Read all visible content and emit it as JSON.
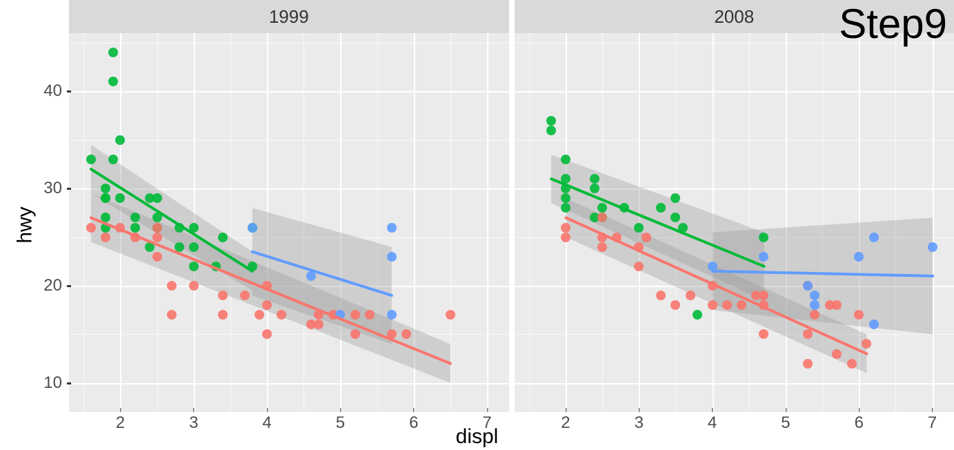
{
  "type": "scatter",
  "step_label": "Step9",
  "x_label": "displ",
  "y_label": "hwy",
  "facet_labels": [
    "1999",
    "2008"
  ],
  "x_ticks": [
    2,
    3,
    4,
    5,
    6,
    7
  ],
  "y_ticks": [
    10,
    20,
    30,
    40
  ],
  "xlim": [
    1.3,
    7.3
  ],
  "ylim": [
    7,
    46
  ],
  "background_color": "#ffffff",
  "panel_color": "#ebebeb",
  "strip_color": "#d9d9d9",
  "grid_color": "#ffffff",
  "tick_color": "#4d4d4d",
  "ribbon_color": "#999999",
  "ribbon_opacity": 0.35,
  "label_fontsize": 30,
  "tick_fontsize": 24,
  "strip_fontsize": 26,
  "step_fontsize": 60,
  "point_size": 14,
  "line_width": 4,
  "series_colors": {
    "4": "#f8766d",
    "f": "#00ba38",
    "r": "#619cff"
  },
  "panels": [
    {
      "label": "1999",
      "points": [
        {
          "x": 1.6,
          "y": 33,
          "drv": "f"
        },
        {
          "x": 1.8,
          "y": 29,
          "drv": "f"
        },
        {
          "x": 1.8,
          "y": 29,
          "drv": "f"
        },
        {
          "x": 1.8,
          "y": 26,
          "drv": "f"
        },
        {
          "x": 1.8,
          "y": 27,
          "drv": "f"
        },
        {
          "x": 1.8,
          "y": 30,
          "drv": "f"
        },
        {
          "x": 1.9,
          "y": 44,
          "drv": "f"
        },
        {
          "x": 1.9,
          "y": 41,
          "drv": "f"
        },
        {
          "x": 1.9,
          "y": 33,
          "drv": "f"
        },
        {
          "x": 2.0,
          "y": 29,
          "drv": "f"
        },
        {
          "x": 2.0,
          "y": 35,
          "drv": "f"
        },
        {
          "x": 2.2,
          "y": 27,
          "drv": "f"
        },
        {
          "x": 2.2,
          "y": 26,
          "drv": "f"
        },
        {
          "x": 2.4,
          "y": 29,
          "drv": "f"
        },
        {
          "x": 2.4,
          "y": 24,
          "drv": "f"
        },
        {
          "x": 2.5,
          "y": 26,
          "drv": "f"
        },
        {
          "x": 2.5,
          "y": 27,
          "drv": "f"
        },
        {
          "x": 2.5,
          "y": 29,
          "drv": "f"
        },
        {
          "x": 2.8,
          "y": 24,
          "drv": "f"
        },
        {
          "x": 2.8,
          "y": 26,
          "drv": "f"
        },
        {
          "x": 3.0,
          "y": 26,
          "drv": "f"
        },
        {
          "x": 3.0,
          "y": 24,
          "drv": "f"
        },
        {
          "x": 3.0,
          "y": 22,
          "drv": "f"
        },
        {
          "x": 3.3,
          "y": 22,
          "drv": "f"
        },
        {
          "x": 3.4,
          "y": 25,
          "drv": "f"
        },
        {
          "x": 3.8,
          "y": 26,
          "drv": "f"
        },
        {
          "x": 3.8,
          "y": 22,
          "drv": "f"
        },
        {
          "x": 1.6,
          "y": 26,
          "drv": "4"
        },
        {
          "x": 1.8,
          "y": 25,
          "drv": "4"
        },
        {
          "x": 2.0,
          "y": 26,
          "drv": "4"
        },
        {
          "x": 2.2,
          "y": 25,
          "drv": "4"
        },
        {
          "x": 2.5,
          "y": 25,
          "drv": "4"
        },
        {
          "x": 2.5,
          "y": 26,
          "drv": "4"
        },
        {
          "x": 2.5,
          "y": 23,
          "drv": "4"
        },
        {
          "x": 2.7,
          "y": 20,
          "drv": "4"
        },
        {
          "x": 2.7,
          "y": 17,
          "drv": "4"
        },
        {
          "x": 3.0,
          "y": 20,
          "drv": "4"
        },
        {
          "x": 3.4,
          "y": 19,
          "drv": "4"
        },
        {
          "x": 3.4,
          "y": 17,
          "drv": "4"
        },
        {
          "x": 3.7,
          "y": 19,
          "drv": "4"
        },
        {
          "x": 3.9,
          "y": 17,
          "drv": "4"
        },
        {
          "x": 4.0,
          "y": 18,
          "drv": "4"
        },
        {
          "x": 4.0,
          "y": 15,
          "drv": "4"
        },
        {
          "x": 4.0,
          "y": 20,
          "drv": "4"
        },
        {
          "x": 4.2,
          "y": 17,
          "drv": "4"
        },
        {
          "x": 4.6,
          "y": 16,
          "drv": "4"
        },
        {
          "x": 4.7,
          "y": 17,
          "drv": "4"
        },
        {
          "x": 4.7,
          "y": 16,
          "drv": "4"
        },
        {
          "x": 4.9,
          "y": 17,
          "drv": "4"
        },
        {
          "x": 5.2,
          "y": 15,
          "drv": "4"
        },
        {
          "x": 5.2,
          "y": 17,
          "drv": "4"
        },
        {
          "x": 5.4,
          "y": 17,
          "drv": "4"
        },
        {
          "x": 5.7,
          "y": 15,
          "drv": "4"
        },
        {
          "x": 5.9,
          "y": 15,
          "drv": "4"
        },
        {
          "x": 6.5,
          "y": 17,
          "drv": "4"
        },
        {
          "x": 3.8,
          "y": 26,
          "drv": "r"
        },
        {
          "x": 4.6,
          "y": 21,
          "drv": "r"
        },
        {
          "x": 5.0,
          "y": 17,
          "drv": "r"
        },
        {
          "x": 5.7,
          "y": 26,
          "drv": "r"
        },
        {
          "x": 5.7,
          "y": 23,
          "drv": "r"
        },
        {
          "x": 5.7,
          "y": 17,
          "drv": "r"
        }
      ],
      "lines": [
        {
          "drv": "f",
          "x1": 1.6,
          "y1": 32,
          "x2": 3.8,
          "y2": 21.5
        },
        {
          "drv": "4",
          "x1": 1.6,
          "y1": 27,
          "x2": 6.5,
          "y2": 12
        },
        {
          "drv": "r",
          "x1": 3.8,
          "y1": 23.5,
          "x2": 5.7,
          "y2": 19
        }
      ],
      "ribbons": [
        {
          "drv": "f",
          "points": [
            [
              1.6,
              29.5
            ],
            [
              3.8,
              19.5
            ],
            [
              3.8,
              23.5
            ],
            [
              1.6,
              34.5
            ]
          ]
        },
        {
          "drv": "4",
          "points": [
            [
              1.6,
              24.5
            ],
            [
              6.5,
              10
            ],
            [
              6.5,
              14
            ],
            [
              1.6,
              29.5
            ]
          ]
        },
        {
          "drv": "r",
          "points": [
            [
              3.8,
              19
            ],
            [
              5.7,
              14
            ],
            [
              5.7,
              24
            ],
            [
              3.8,
              28
            ]
          ]
        }
      ]
    },
    {
      "label": "2008",
      "points": [
        {
          "x": 1.8,
          "y": 36,
          "drv": "f"
        },
        {
          "x": 1.8,
          "y": 37,
          "drv": "f"
        },
        {
          "x": 2.0,
          "y": 31,
          "drv": "f"
        },
        {
          "x": 2.0,
          "y": 30,
          "drv": "f"
        },
        {
          "x": 2.0,
          "y": 29,
          "drv": "f"
        },
        {
          "x": 2.0,
          "y": 33,
          "drv": "f"
        },
        {
          "x": 2.0,
          "y": 28,
          "drv": "f"
        },
        {
          "x": 2.4,
          "y": 30,
          "drv": "f"
        },
        {
          "x": 2.4,
          "y": 31,
          "drv": "f"
        },
        {
          "x": 2.4,
          "y": 27,
          "drv": "f"
        },
        {
          "x": 2.5,
          "y": 28,
          "drv": "f"
        },
        {
          "x": 2.5,
          "y": 27,
          "drv": "f"
        },
        {
          "x": 2.8,
          "y": 28,
          "drv": "f"
        },
        {
          "x": 3.0,
          "y": 26,
          "drv": "f"
        },
        {
          "x": 3.3,
          "y": 28,
          "drv": "f"
        },
        {
          "x": 3.5,
          "y": 29,
          "drv": "f"
        },
        {
          "x": 3.5,
          "y": 27,
          "drv": "f"
        },
        {
          "x": 3.6,
          "y": 26,
          "drv": "f"
        },
        {
          "x": 3.8,
          "y": 17,
          "drv": "f"
        },
        {
          "x": 4.7,
          "y": 25,
          "drv": "f"
        },
        {
          "x": 2.0,
          "y": 26,
          "drv": "4"
        },
        {
          "x": 2.0,
          "y": 25,
          "drv": "4"
        },
        {
          "x": 2.5,
          "y": 27,
          "drv": "4"
        },
        {
          "x": 2.5,
          "y": 25,
          "drv": "4"
        },
        {
          "x": 2.5,
          "y": 24,
          "drv": "4"
        },
        {
          "x": 2.7,
          "y": 25,
          "drv": "4"
        },
        {
          "x": 3.0,
          "y": 24,
          "drv": "4"
        },
        {
          "x": 3.0,
          "y": 22,
          "drv": "4"
        },
        {
          "x": 3.1,
          "y": 25,
          "drv": "4"
        },
        {
          "x": 3.3,
          "y": 19,
          "drv": "4"
        },
        {
          "x": 3.5,
          "y": 18,
          "drv": "4"
        },
        {
          "x": 3.7,
          "y": 19,
          "drv": "4"
        },
        {
          "x": 4.0,
          "y": 20,
          "drv": "4"
        },
        {
          "x": 4.0,
          "y": 18,
          "drv": "4"
        },
        {
          "x": 4.2,
          "y": 18,
          "drv": "4"
        },
        {
          "x": 4.4,
          "y": 18,
          "drv": "4"
        },
        {
          "x": 4.6,
          "y": 19,
          "drv": "4"
        },
        {
          "x": 4.7,
          "y": 15,
          "drv": "4"
        },
        {
          "x": 4.7,
          "y": 18,
          "drv": "4"
        },
        {
          "x": 4.7,
          "y": 19,
          "drv": "4"
        },
        {
          "x": 5.3,
          "y": 20,
          "drv": "4"
        },
        {
          "x": 5.3,
          "y": 12,
          "drv": "4"
        },
        {
          "x": 5.3,
          "y": 15,
          "drv": "4"
        },
        {
          "x": 5.4,
          "y": 17,
          "drv": "4"
        },
        {
          "x": 5.6,
          "y": 18,
          "drv": "4"
        },
        {
          "x": 5.7,
          "y": 13,
          "drv": "4"
        },
        {
          "x": 5.7,
          "y": 18,
          "drv": "4"
        },
        {
          "x": 5.9,
          "y": 12,
          "drv": "4"
        },
        {
          "x": 6.0,
          "y": 17,
          "drv": "4"
        },
        {
          "x": 6.1,
          "y": 14,
          "drv": "4"
        },
        {
          "x": 4.0,
          "y": 22,
          "drv": "r"
        },
        {
          "x": 4.7,
          "y": 23,
          "drv": "r"
        },
        {
          "x": 5.3,
          "y": 20,
          "drv": "r"
        },
        {
          "x": 5.4,
          "y": 19,
          "drv": "r"
        },
        {
          "x": 5.4,
          "y": 18,
          "drv": "r"
        },
        {
          "x": 6.0,
          "y": 23,
          "drv": "r"
        },
        {
          "x": 6.2,
          "y": 25,
          "drv": "r"
        },
        {
          "x": 6.2,
          "y": 16,
          "drv": "r"
        },
        {
          "x": 7.0,
          "y": 24,
          "drv": "r"
        }
      ],
      "lines": [
        {
          "drv": "f",
          "x1": 1.8,
          "y1": 31,
          "x2": 4.7,
          "y2": 22
        },
        {
          "drv": "4",
          "x1": 2.0,
          "y1": 27,
          "x2": 6.1,
          "y2": 13
        },
        {
          "drv": "r",
          "x1": 4.0,
          "y1": 21.5,
          "x2": 7.0,
          "y2": 21
        }
      ],
      "ribbons": [
        {
          "drv": "f",
          "points": [
            [
              1.8,
              28.5
            ],
            [
              4.7,
              18.5
            ],
            [
              4.7,
              25.5
            ],
            [
              1.8,
              33.5
            ]
          ]
        },
        {
          "drv": "4",
          "points": [
            [
              2.0,
              25
            ],
            [
              6.1,
              11
            ],
            [
              6.1,
              15
            ],
            [
              2.0,
              29
            ]
          ]
        },
        {
          "drv": "r",
          "points": [
            [
              4.0,
              17.5
            ],
            [
              7.0,
              15
            ],
            [
              7.0,
              27
            ],
            [
              4.0,
              25.5
            ]
          ]
        }
      ]
    }
  ]
}
